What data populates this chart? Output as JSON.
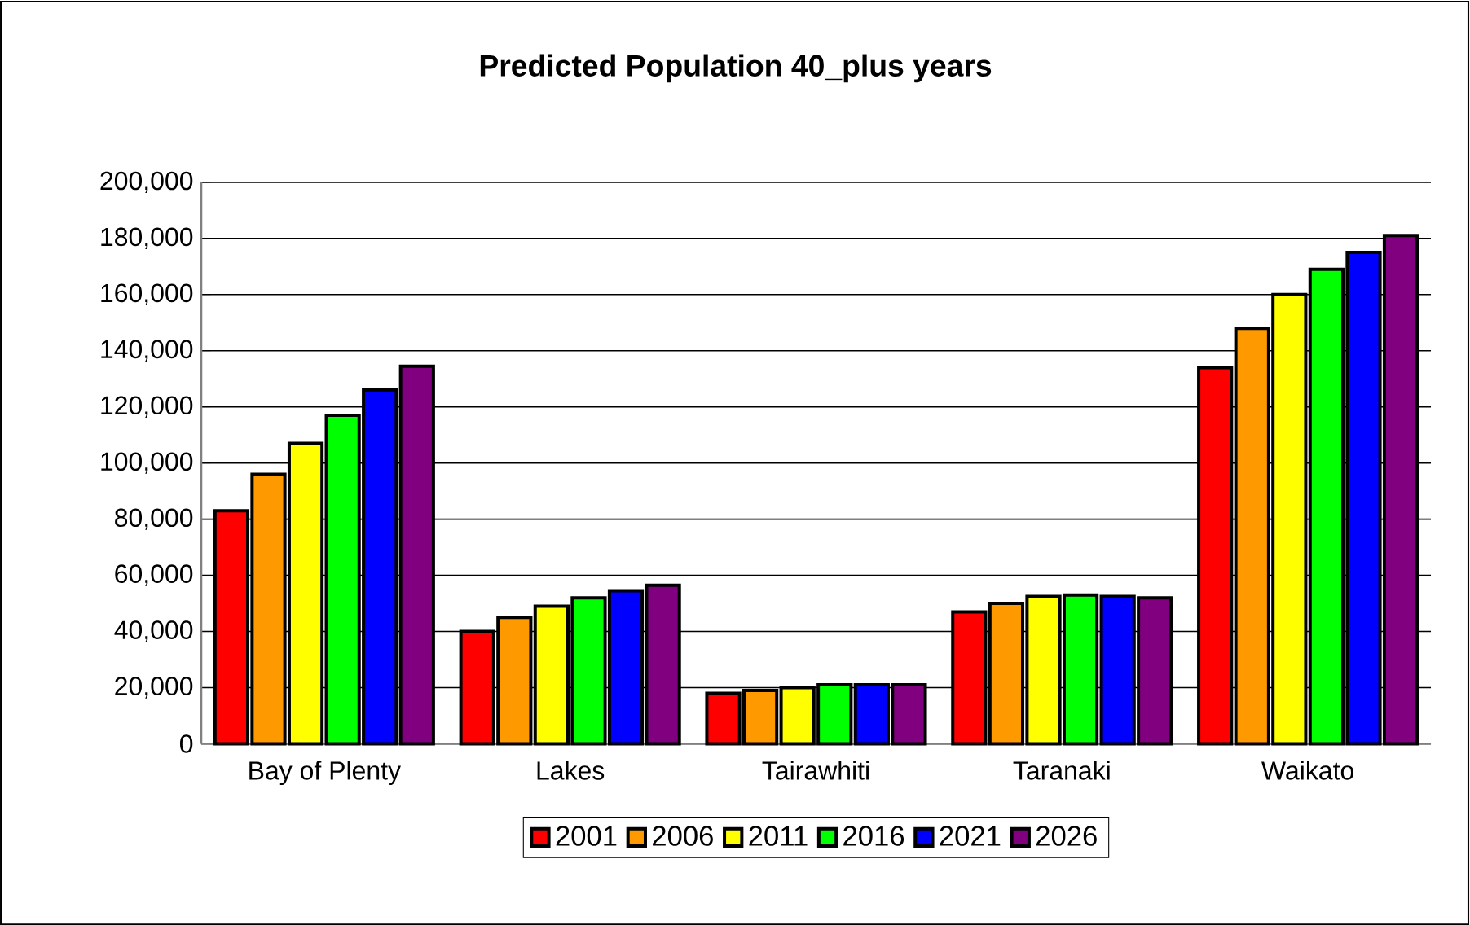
{
  "chart_data": {
    "type": "bar",
    "title": "Predicted Population 40_plus years",
    "categories": [
      "Bay of Plenty",
      "Lakes",
      "Tairawhiti",
      "Taranaki",
      "Waikato"
    ],
    "series": [
      {
        "name": "2001",
        "color": "#ff0000",
        "values": [
          83000,
          40000,
          18000,
          47000,
          134000
        ]
      },
      {
        "name": "2006",
        "color": "#ff9900",
        "values": [
          96000,
          45000,
          19000,
          50000,
          148000
        ]
      },
      {
        "name": "2011",
        "color": "#ffff00",
        "values": [
          107000,
          49000,
          20000,
          52500,
          160000
        ]
      },
      {
        "name": "2016",
        "color": "#00ff00",
        "values": [
          117000,
          52000,
          21000,
          53000,
          169000
        ]
      },
      {
        "name": "2021",
        "color": "#0000ff",
        "values": [
          126000,
          54500,
          21000,
          52500,
          175000
        ]
      },
      {
        "name": "2026",
        "color": "#800080",
        "values": [
          134500,
          56500,
          21000,
          52000,
          181000
        ]
      }
    ],
    "ylim": [
      0,
      200000
    ],
    "yticks": [
      {
        "value": 0,
        "label": "0"
      },
      {
        "value": 20000,
        "label": "20,000"
      },
      {
        "value": 40000,
        "label": "40,000"
      },
      {
        "value": 60000,
        "label": "60,000"
      },
      {
        "value": 80000,
        "label": "80,000"
      },
      {
        "value": 100000,
        "label": "100,000"
      },
      {
        "value": 120000,
        "label": "120,000"
      },
      {
        "value": 140000,
        "label": "140,000"
      },
      {
        "value": 160000,
        "label": "160,000"
      },
      {
        "value": 180000,
        "label": "180,000"
      },
      {
        "value": 200000,
        "label": "200,000"
      }
    ],
    "grid": "y",
    "legend": "bottom"
  }
}
